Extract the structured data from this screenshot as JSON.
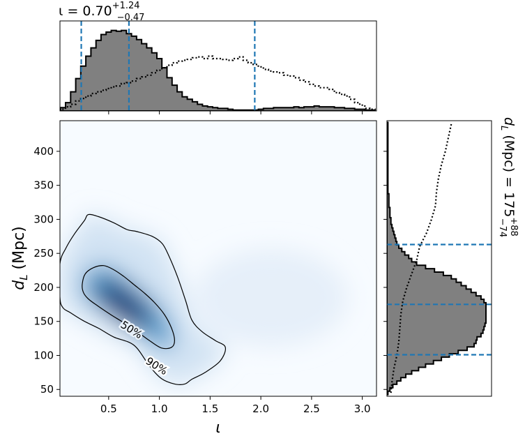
{
  "chart_data": {
    "type": "corner",
    "top_panel": {
      "title": "ι = 0.70",
      "title_sup": "+1.24",
      "title_sub": "−0.47",
      "xlim": [
        0.02,
        3.14
      ],
      "histogram_filled": {
        "x": [
          0.05,
          0.1,
          0.15,
          0.2,
          0.25,
          0.3,
          0.35,
          0.4,
          0.45,
          0.5,
          0.55,
          0.6,
          0.65,
          0.7,
          0.75,
          0.8,
          0.85,
          0.9,
          0.95,
          1.0,
          1.05,
          1.1,
          1.15,
          1.2,
          1.25,
          1.3,
          1.35,
          1.4,
          1.45,
          1.5,
          1.55,
          1.6,
          1.65,
          1.7,
          1.75,
          1.8,
          1.85,
          1.9,
          1.95,
          2.0,
          2.05,
          2.1,
          2.15,
          2.2,
          2.25,
          2.3,
          2.35,
          2.4,
          2.45,
          2.5,
          2.55,
          2.6,
          2.65,
          2.7,
          2.75,
          2.8,
          2.85,
          2.9,
          2.95,
          3.0,
          3.05,
          3.1
        ],
        "density": [
          0.04,
          0.1,
          0.23,
          0.39,
          0.54,
          0.66,
          0.76,
          0.85,
          0.92,
          0.95,
          0.97,
          0.96,
          0.97,
          0.93,
          0.9,
          0.86,
          0.81,
          0.76,
          0.7,
          0.63,
          0.52,
          0.4,
          0.31,
          0.23,
          0.17,
          0.14,
          0.11,
          0.08,
          0.06,
          0.05,
          0.04,
          0.03,
          0.03,
          0.02,
          0.01,
          0.01,
          0.01,
          0.01,
          0.01,
          0.02,
          0.03,
          0.03,
          0.04,
          0.04,
          0.04,
          0.04,
          0.05,
          0.04,
          0.05,
          0.05,
          0.06,
          0.05,
          0.05,
          0.05,
          0.04,
          0.04,
          0.03,
          0.03,
          0.02,
          0.02,
          0.01,
          0.01
        ]
      },
      "histogram_dotted": {
        "x": [
          0.05,
          0.1,
          0.15,
          0.2,
          0.25,
          0.3,
          0.35,
          0.4,
          0.45,
          0.5,
          0.55,
          0.6,
          0.65,
          0.7,
          0.75,
          0.8,
          0.85,
          0.9,
          0.95,
          1.0,
          1.05,
          1.1,
          1.15,
          1.2,
          1.25,
          1.3,
          1.35,
          1.4,
          1.45,
          1.5,
          1.55,
          1.6,
          1.65,
          1.7,
          1.75,
          1.8,
          1.85,
          1.9,
          1.95,
          2.0,
          2.05,
          2.1,
          2.15,
          2.2,
          2.25,
          2.3,
          2.35,
          2.4,
          2.45,
          2.5,
          2.55,
          2.6,
          2.65,
          2.7,
          2.75,
          2.8,
          2.85,
          2.9,
          2.95,
          3.0,
          3.05,
          3.1
        ],
        "density": [
          0.02,
          0.05,
          0.08,
          0.12,
          0.15,
          0.18,
          0.21,
          0.23,
          0.25,
          0.27,
          0.29,
          0.3,
          0.33,
          0.34,
          0.36,
          0.39,
          0.41,
          0.43,
          0.46,
          0.49,
          0.52,
          0.55,
          0.58,
          0.6,
          0.61,
          0.62,
          0.64,
          0.65,
          0.63,
          0.66,
          0.63,
          0.63,
          0.62,
          0.61,
          0.63,
          0.65,
          0.61,
          0.58,
          0.56,
          0.53,
          0.5,
          0.48,
          0.47,
          0.46,
          0.43,
          0.42,
          0.4,
          0.37,
          0.35,
          0.32,
          0.3,
          0.28,
          0.28,
          0.26,
          0.22,
          0.2,
          0.18,
          0.14,
          0.1,
          0.07,
          0.03,
          0.02
        ]
      },
      "quantile_lines": [
        0.23,
        0.7,
        1.94
      ]
    },
    "main_panel": {
      "xlabel": "ι",
      "ylabel": "d",
      "ylabel_sub": "L",
      "ylabel_unit": " (Mpc)",
      "xlim": [
        0.02,
        3.14
      ],
      "ylim": [
        40,
        445
      ],
      "xticks": [
        0.5,
        1.0,
        1.5,
        2.0,
        2.5,
        3.0
      ],
      "xtick_labels": [
        "0.5",
        "1.0",
        "1.5",
        "2.0",
        "2.5",
        "3.0"
      ],
      "yticks": [
        50,
        100,
        150,
        200,
        250,
        300,
        350,
        400
      ],
      "ytick_labels": [
        "50",
        "100",
        "150",
        "200",
        "250",
        "300",
        "350",
        "400"
      ],
      "colormap": "Blues",
      "density_peak": {
        "x": 0.65,
        "y": 175
      },
      "contours": [
        {
          "label": "50%",
          "label_position": {
            "x": 0.72,
            "y": 138
          },
          "points": [
            [
              0.24,
              205
            ],
            [
              0.27,
              220
            ],
            [
              0.35,
              229
            ],
            [
              0.45,
              232
            ],
            [
              0.55,
              226
            ],
            [
              0.65,
              216
            ],
            [
              0.75,
              204
            ],
            [
              0.85,
              192
            ],
            [
              0.95,
              178
            ],
            [
              1.05,
              160
            ],
            [
              1.12,
              140
            ],
            [
              1.15,
              122
            ],
            [
              1.12,
              112
            ],
            [
              1.02,
              111
            ],
            [
              0.9,
              122
            ],
            [
              0.78,
              135
            ],
            [
              0.65,
              148
            ],
            [
              0.52,
              160
            ],
            [
              0.4,
              172
            ],
            [
              0.3,
              183
            ],
            [
              0.25,
              193
            ]
          ]
        },
        {
          "label": "90%",
          "label_position": {
            "x": 0.93,
            "y": 95
          },
          "points": [
            [
              0.02,
              235
            ],
            [
              0.08,
              258
            ],
            [
              0.16,
              278
            ],
            [
              0.26,
              298
            ],
            [
              0.3,
              307
            ],
            [
              0.4,
              304
            ],
            [
              0.55,
              295
            ],
            [
              0.68,
              285
            ],
            [
              0.78,
              282
            ],
            [
              0.93,
              275
            ],
            [
              1.03,
              264
            ],
            [
              1.1,
              244
            ],
            [
              1.18,
              215
            ],
            [
              1.26,
              180
            ],
            [
              1.32,
              152
            ],
            [
              1.42,
              135
            ],
            [
              1.55,
              122
            ],
            [
              1.65,
              112
            ],
            [
              1.6,
              92
            ],
            [
              1.45,
              75
            ],
            [
              1.32,
              65
            ],
            [
              1.25,
              58
            ],
            [
              1.15,
              58
            ],
            [
              1.02,
              66
            ],
            [
              0.9,
              85
            ],
            [
              0.75,
              115
            ],
            [
              0.55,
              127
            ],
            [
              0.4,
              140
            ],
            [
              0.25,
              151
            ],
            [
              0.12,
              163
            ],
            [
              0.05,
              170
            ],
            [
              0.02,
              185
            ]
          ]
        }
      ]
    },
    "right_panel": {
      "label": "d",
      "label_sub": "L",
      "label_rest": " (Mpc) = 175",
      "label_sup": "+88",
      "label_sub2": "−74",
      "ylim": [
        40,
        445
      ],
      "histogram_filled": {
        "y": [
          45,
          50,
          55,
          60,
          65,
          70,
          75,
          80,
          85,
          90,
          95,
          100,
          105,
          110,
          115,
          120,
          125,
          130,
          135,
          140,
          145,
          150,
          155,
          160,
          165,
          170,
          175,
          180,
          185,
          190,
          195,
          200,
          205,
          210,
          215,
          220,
          225,
          230,
          235,
          240,
          245,
          250,
          255,
          260,
          265,
          270,
          275,
          280,
          285,
          290,
          295,
          300,
          305,
          310,
          315,
          320,
          325,
          330,
          335,
          340,
          345,
          350,
          355,
          360,
          365,
          370,
          375,
          380,
          385,
          390,
          395,
          400,
          405,
          410,
          415,
          420,
          425,
          430,
          435,
          440
        ],
        "density": [
          0.01,
          0.03,
          0.06,
          0.1,
          0.14,
          0.19,
          0.25,
          0.32,
          0.39,
          0.47,
          0.55,
          0.63,
          0.72,
          0.81,
          0.88,
          0.9,
          0.91,
          0.95,
          0.97,
          0.98,
          0.99,
          1.0,
          1.0,
          1.0,
          1.0,
          1.0,
          1.0,
          0.98,
          0.95,
          0.9,
          0.85,
          0.8,
          0.75,
          0.7,
          0.65,
          0.57,
          0.48,
          0.39,
          0.3,
          0.25,
          0.22,
          0.18,
          0.15,
          0.12,
          0.1,
          0.09,
          0.08,
          0.07,
          0.06,
          0.05,
          0.04,
          0.04,
          0.03,
          0.03,
          0.03,
          0.02,
          0.02,
          0.02,
          0.02,
          0.01,
          0.01,
          0.01,
          0.01,
          0.01,
          0.01,
          0.01,
          0.01,
          0.01,
          0.01,
          0.01,
          0.01,
          0.01,
          0.01,
          0.01,
          0.01,
          0.01,
          0.01,
          0.01,
          0.01,
          0.01
        ]
      },
      "histogram_dotted": {
        "y": [
          45,
          60,
          80,
          100,
          120,
          140,
          160,
          180,
          200,
          220,
          240,
          260,
          280,
          300,
          320,
          340,
          360,
          380,
          400,
          420,
          440
        ],
        "density": [
          0.04,
          0.05,
          0.07,
          0.1,
          0.12,
          0.13,
          0.14,
          0.16,
          0.2,
          0.25,
          0.3,
          0.33,
          0.4,
          0.45,
          0.49,
          0.5,
          0.52,
          0.55,
          0.59,
          0.62,
          0.65
        ]
      },
      "quantile_lines": [
        101,
        175,
        263
      ]
    }
  }
}
